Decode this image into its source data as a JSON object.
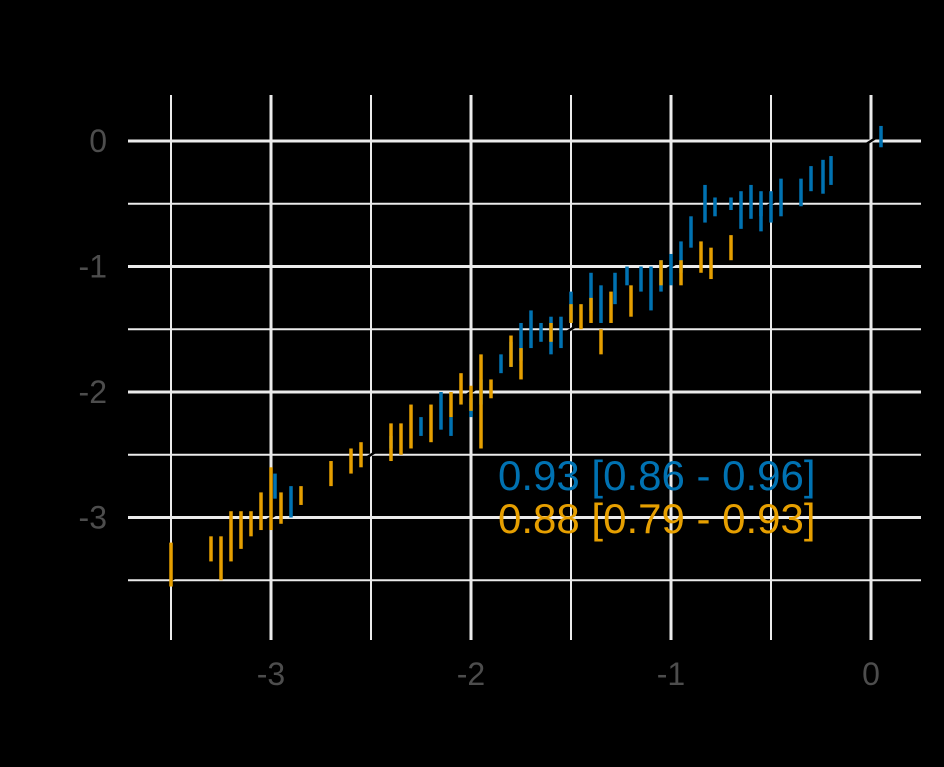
{
  "chart_data": {
    "type": "scatter",
    "title": "",
    "xlabel": "",
    "ylabel": "",
    "xlim": [
      -3.5,
      0.1
    ],
    "ylim": [
      -3.5,
      0.1
    ],
    "x_ticks": [
      -3,
      -2,
      -1,
      0
    ],
    "x_tick_labels": [
      "-3",
      "-2",
      "-1",
      "0"
    ],
    "y_ticks": [
      0,
      -1,
      -2,
      -3
    ],
    "y_tick_labels": [
      "0",
      "-1",
      "-2",
      "-3"
    ],
    "grid": true,
    "identity_line": true,
    "series": [
      {
        "color": "#0072b2",
        "points": [
          {
            "x": 0.05,
            "lo": -0.05,
            "hi": 0.12
          },
          {
            "x": -0.2,
            "lo": -0.35,
            "hi": -0.12
          },
          {
            "x": -0.24,
            "lo": -0.42,
            "hi": -0.15
          },
          {
            "x": -0.3,
            "lo": -0.4,
            "hi": -0.2
          },
          {
            "x": -0.35,
            "lo": -0.52,
            "hi": -0.3
          },
          {
            "x": -0.45,
            "lo": -0.6,
            "hi": -0.3
          },
          {
            "x": -0.5,
            "lo": -0.65,
            "hi": -0.4
          },
          {
            "x": -0.55,
            "lo": -0.72,
            "hi": -0.4
          },
          {
            "x": -0.6,
            "lo": -0.62,
            "hi": -0.35
          },
          {
            "x": -0.65,
            "lo": -0.7,
            "hi": -0.4
          },
          {
            "x": -0.7,
            "lo": -0.55,
            "hi": -0.45
          },
          {
            "x": -0.55,
            "lo": -0.6,
            "hi": -0.5
          },
          {
            "x": -0.78,
            "lo": -0.6,
            "hi": -0.45
          },
          {
            "x": -0.83,
            "lo": -0.65,
            "hi": -0.35
          },
          {
            "x": -0.9,
            "lo": -0.85,
            "hi": -0.6
          },
          {
            "x": -0.95,
            "lo": -1.05,
            "hi": -0.8
          },
          {
            "x": -1.0,
            "lo": -1.15,
            "hi": -0.9
          },
          {
            "x": -1.05,
            "lo": -1.2,
            "hi": -0.95
          },
          {
            "x": -1.1,
            "lo": -1.35,
            "hi": -1.0
          },
          {
            "x": -1.15,
            "lo": -1.2,
            "hi": -1.0
          },
          {
            "x": -1.22,
            "lo": -1.15,
            "hi": -1.0
          },
          {
            "x": -1.28,
            "lo": -1.3,
            "hi": -1.05
          },
          {
            "x": -1.35,
            "lo": -1.45,
            "hi": -1.15
          },
          {
            "x": -1.4,
            "lo": -1.35,
            "hi": -1.05
          },
          {
            "x": -1.5,
            "lo": -1.45,
            "hi": -1.2
          },
          {
            "x": -1.55,
            "lo": -1.65,
            "hi": -1.4
          },
          {
            "x": -1.6,
            "lo": -1.7,
            "hi": -1.4
          },
          {
            "x": -1.65,
            "lo": -1.6,
            "hi": -1.45
          },
          {
            "x": -1.7,
            "lo": -1.65,
            "hi": -1.35
          },
          {
            "x": -1.75,
            "lo": -1.75,
            "hi": -1.45
          },
          {
            "x": -1.8,
            "lo": -1.8,
            "hi": -1.6
          },
          {
            "x": -1.85,
            "lo": -1.85,
            "hi": -1.7
          },
          {
            "x": -1.95,
            "lo": -2.1,
            "hi": -1.9
          },
          {
            "x": -2.0,
            "lo": -2.2,
            "hi": -2.05
          },
          {
            "x": -2.1,
            "lo": -2.35,
            "hi": -2.2
          },
          {
            "x": -2.15,
            "lo": -2.3,
            "hi": -2.0
          },
          {
            "x": -2.25,
            "lo": -2.35,
            "hi": -2.2
          },
          {
            "x": -2.4,
            "lo": -2.45,
            "hi": -2.35
          },
          {
            "x": -2.9,
            "lo": -3.0,
            "hi": -2.75
          },
          {
            "x": -2.98,
            "lo": -2.85,
            "hi": -2.65
          }
        ]
      },
      {
        "color": "#e69f00",
        "points": [
          {
            "x": -0.7,
            "lo": -0.95,
            "hi": -0.75
          },
          {
            "x": -0.8,
            "lo": -1.1,
            "hi": -0.85
          },
          {
            "x": -0.85,
            "lo": -1.05,
            "hi": -0.8
          },
          {
            "x": -0.95,
            "lo": -1.15,
            "hi": -0.95
          },
          {
            "x": -1.05,
            "lo": -1.15,
            "hi": -0.95
          },
          {
            "x": -1.2,
            "lo": -1.4,
            "hi": -1.15
          },
          {
            "x": -1.3,
            "lo": -1.45,
            "hi": -1.2
          },
          {
            "x": -1.35,
            "lo": -1.7,
            "hi": -1.5
          },
          {
            "x": -1.4,
            "lo": -1.45,
            "hi": -1.25
          },
          {
            "x": -1.45,
            "lo": -1.5,
            "hi": -1.3
          },
          {
            "x": -1.5,
            "lo": -1.45,
            "hi": -1.3
          },
          {
            "x": -1.6,
            "lo": -1.6,
            "hi": -1.45
          },
          {
            "x": -1.75,
            "lo": -1.9,
            "hi": -1.65
          },
          {
            "x": -1.8,
            "lo": -1.8,
            "hi": -1.55
          },
          {
            "x": -1.9,
            "lo": -2.05,
            "hi": -1.9
          },
          {
            "x": -1.95,
            "lo": -2.45,
            "hi": -1.7
          },
          {
            "x": -2.0,
            "lo": -2.15,
            "hi": -1.95
          },
          {
            "x": -2.05,
            "lo": -2.1,
            "hi": -1.85
          },
          {
            "x": -2.1,
            "lo": -2.2,
            "hi": -2.0
          },
          {
            "x": -2.2,
            "lo": -2.4,
            "hi": -2.1
          },
          {
            "x": -2.3,
            "lo": -2.45,
            "hi": -2.1
          },
          {
            "x": -2.35,
            "lo": -2.5,
            "hi": -2.25
          },
          {
            "x": -2.4,
            "lo": -2.55,
            "hi": -2.25
          },
          {
            "x": -2.55,
            "lo": -2.6,
            "hi": -2.4
          },
          {
            "x": -2.6,
            "lo": -2.65,
            "hi": -2.45
          },
          {
            "x": -2.7,
            "lo": -2.75,
            "hi": -2.55
          },
          {
            "x": -2.85,
            "lo": -2.9,
            "hi": -2.75
          },
          {
            "x": -2.95,
            "lo": -3.05,
            "hi": -2.8
          },
          {
            "x": -3.0,
            "lo": -3.1,
            "hi": -2.6
          },
          {
            "x": -3.05,
            "lo": -3.1,
            "hi": -2.8
          },
          {
            "x": -3.1,
            "lo": -3.15,
            "hi": -2.95
          },
          {
            "x": -3.15,
            "lo": -3.25,
            "hi": -2.95
          },
          {
            "x": -3.2,
            "lo": -3.35,
            "hi": -2.95
          },
          {
            "x": -3.25,
            "lo": -3.5,
            "hi": -3.15
          },
          {
            "x": -3.3,
            "lo": -3.35,
            "hi": -3.15
          },
          {
            "x": -3.5,
            "lo": -3.55,
            "hi": -3.2
          }
        ]
      }
    ],
    "annotations": [
      {
        "text": "0.93 [0.86 - 0.96]",
        "color": "#0072b2"
      },
      {
        "text": "0.88 [0.79 - 0.93]",
        "color": "#e69f00"
      }
    ]
  }
}
